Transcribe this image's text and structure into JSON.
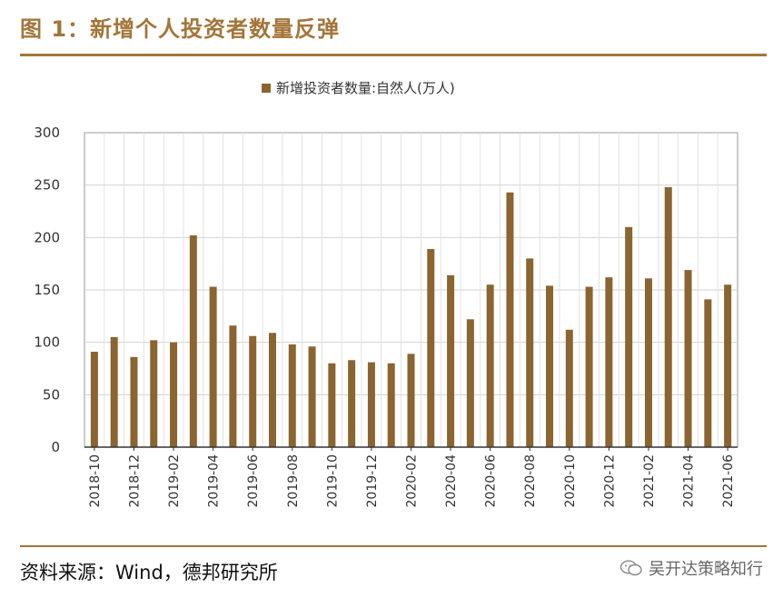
{
  "header": {
    "title": "图 1：新增个人投资者数量反弹"
  },
  "footer": {
    "source": "资料来源：Wind，德邦研究所",
    "watermark": "吴开达策略知行"
  },
  "colors": {
    "accent": "#a47538",
    "bar": "#8b6430"
  },
  "chart_data": {
    "type": "bar",
    "legend": "新增投资者数量:自然人(万人)",
    "categories": [
      "2018-10",
      "2018-11",
      "2018-12",
      "2019-01",
      "2019-02",
      "2019-03",
      "2019-04",
      "2019-05",
      "2019-06",
      "2019-07",
      "2019-08",
      "2019-09",
      "2019-10",
      "2019-11",
      "2019-12",
      "2020-01",
      "2020-02",
      "2020-03",
      "2020-04",
      "2020-05",
      "2020-06",
      "2020-07",
      "2020-08",
      "2020-09",
      "2020-10",
      "2020-11",
      "2020-12",
      "2021-01",
      "2021-02",
      "2021-03",
      "2021-04",
      "2021-05",
      "2021-06"
    ],
    "tick_labels": [
      "2018-10",
      "2018-12",
      "2019-02",
      "2019-04",
      "2019-06",
      "2019-08",
      "2019-10",
      "2019-12",
      "2020-02",
      "2020-04",
      "2020-06",
      "2020-08",
      "2020-10",
      "2020-12",
      "2021-02",
      "2021-04",
      "2021-06"
    ],
    "values": [
      91,
      105,
      86,
      102,
      100,
      202,
      153,
      116,
      106,
      109,
      98,
      96,
      80,
      83,
      81,
      80,
      89,
      189,
      164,
      122,
      155,
      243,
      180,
      154,
      112,
      153,
      162,
      210,
      161,
      248,
      169,
      141,
      155
    ],
    "ylim": [
      0,
      300
    ],
    "yticks": [
      0,
      50,
      100,
      150,
      200,
      250,
      300
    ],
    "grid": true,
    "legend_position": "top"
  }
}
